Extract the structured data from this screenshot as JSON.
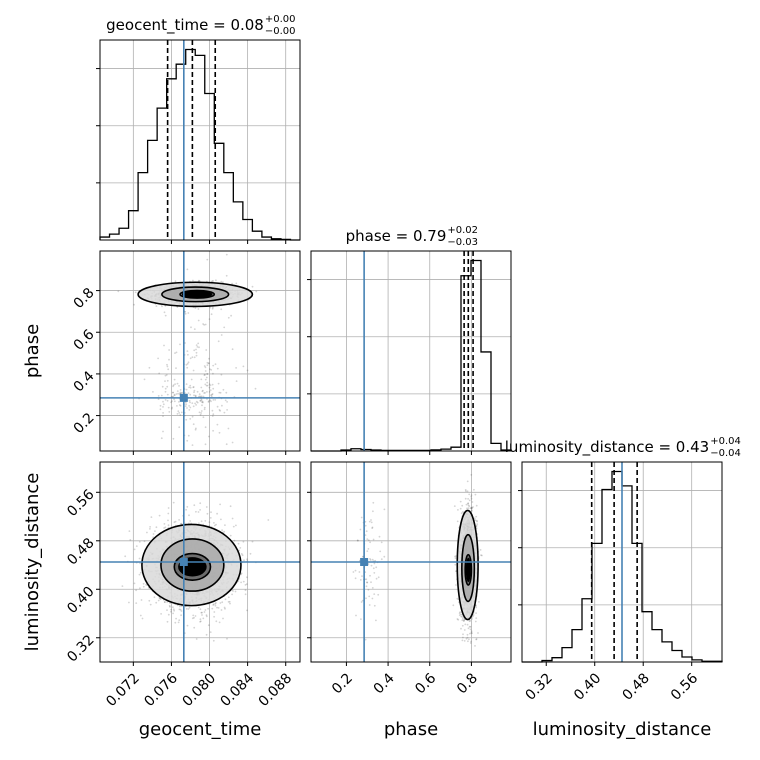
{
  "chart_data": {
    "type": "corner",
    "parameters": [
      "geocent_time",
      "phase",
      "luminosity_distance"
    ],
    "colors": {
      "truth": "#4682b4",
      "line": "#000000",
      "grid": "#b0b0b0",
      "scatter": "#555555"
    },
    "ranges": {
      "geocent_time": [
        0.0685,
        0.0895
      ],
      "phase": [
        0.03,
        0.99
      ],
      "luminosity_distance": [
        0.28,
        0.61
      ]
    },
    "truths": {
      "geocent_time": 0.0773,
      "phase": 0.285,
      "luminosity_distance": 0.445
    },
    "ticks": {
      "geocent_time": [
        0.072,
        0.076,
        0.08,
        0.084,
        0.088
      ],
      "phase": [
        0.2,
        0.4,
        0.6,
        0.8
      ],
      "luminosity_distance": [
        0.32,
        0.4,
        0.48,
        0.56
      ]
    },
    "tick_labels": {
      "geocent_time": [
        "0.072",
        "0.076",
        "0.080",
        "0.084",
        "0.088"
      ],
      "phase": [
        "0.2",
        "0.4",
        "0.6",
        "0.8"
      ],
      "luminosity_distance": [
        "0.32",
        "0.40",
        "0.48",
        "0.56"
      ]
    },
    "axis_labels": {
      "x_geocent_time": "geocent_time",
      "x_phase": "phase",
      "x_luminosity_distance": "luminosity_distance",
      "y_phase": "phase",
      "y_luminosity_distance": "luminosity_distance"
    },
    "titles": [
      {
        "param": "geocent_time",
        "main": "geocent_time = 0.08",
        "plus": "+0.00",
        "minus": "−0.00"
      },
      {
        "param": "phase",
        "main": "phase = 0.79",
        "plus": "+0.02",
        "minus": "−0.03"
      },
      {
        "param": "luminosity_distance",
        "main": "luminosity_distance = 0.43",
        "plus": "+0.04",
        "minus": "−0.04"
      }
    ],
    "quantiles": {
      "geocent_time": [
        0.0756,
        0.0782,
        0.0806
      ],
      "phase": [
        0.765,
        0.785,
        0.808
      ],
      "luminosity_distance": [
        0.395,
        0.432,
        0.47
      ]
    },
    "histograms": {
      "geocent_time": {
        "edges": [
          0.0685,
          0.0695,
          0.0705,
          0.0715,
          0.0725,
          0.0735,
          0.0745,
          0.0755,
          0.0765,
          0.0775,
          0.0785,
          0.0795,
          0.0805,
          0.0815,
          0.0825,
          0.0835,
          0.0845,
          0.0855,
          0.0865,
          0.0875,
          0.0885,
          0.0895
        ],
        "counts": [
          5,
          10,
          20,
          50,
          115,
          170,
          225,
          275,
          300,
          325,
          315,
          250,
          165,
          115,
          65,
          35,
          15,
          5,
          2,
          1,
          0
        ]
      },
      "phase": {
        "edges": [
          0.03,
          0.078,
          0.126,
          0.174,
          0.222,
          0.27,
          0.318,
          0.366,
          0.414,
          0.462,
          0.51,
          0.558,
          0.606,
          0.654,
          0.702,
          0.75,
          0.798,
          0.846,
          0.894,
          0.942,
          0.99
        ],
        "counts": [
          0,
          0,
          0,
          5,
          12,
          8,
          5,
          3,
          3,
          3,
          3,
          3,
          6,
          10,
          20,
          920,
          1000,
          520,
          40,
          5
        ]
      },
      "luminosity_distance": {
        "edges": [
          0.28,
          0.2965,
          0.313,
          0.3295,
          0.346,
          0.3625,
          0.379,
          0.3955,
          0.412,
          0.4285,
          0.445,
          0.4615,
          0.478,
          0.4945,
          0.511,
          0.5275,
          0.544,
          0.5605,
          0.577,
          0.5935,
          0.61
        ],
        "counts": [
          0,
          0,
          2,
          6,
          20,
          45,
          88,
          165,
          240,
          265,
          245,
          165,
          70,
          45,
          28,
          16,
          7,
          3,
          1,
          1
        ]
      }
    },
    "clouds": [
      {
        "x": "geocent_time",
        "y": "phase",
        "blobs": [
          {
            "cx": 0.0785,
            "cy": 0.785,
            "sx": 0.002,
            "sy": 0.025,
            "n": 1400
          },
          {
            "cx": 0.0785,
            "cy": 0.35,
            "sx": 0.0022,
            "sy": 0.25,
            "n": 200
          },
          {
            "cx": 0.078,
            "cy": 0.29,
            "sx": 0.0018,
            "sy": 0.035,
            "n": 120
          }
        ],
        "contours": [
          {
            "cx": 0.0785,
            "cy": 0.782,
            "rx": 0.006,
            "ry": 0.058
          },
          {
            "cx": 0.0785,
            "cy": 0.782,
            "rx": 0.0035,
            "ry": 0.035
          },
          {
            "cx": 0.0787,
            "cy": 0.782,
            "rx": 0.0018,
            "ry": 0.018
          }
        ],
        "cores": [
          {
            "cx": 0.0787,
            "cy": 0.782,
            "rx": 0.0016,
            "ry": 0.016
          }
        ]
      },
      {
        "x": "geocent_time",
        "y": "luminosity_distance",
        "blobs": [
          {
            "cx": 0.0782,
            "cy": 0.438,
            "sx": 0.0022,
            "sy": 0.035,
            "n": 1800
          }
        ],
        "contours": [
          {
            "cx": 0.0781,
            "cy": 0.44,
            "rx": 0.0052,
            "ry": 0.067
          },
          {
            "cx": 0.0782,
            "cy": 0.44,
            "rx": 0.0033,
            "ry": 0.043
          },
          {
            "cx": 0.0782,
            "cy": 0.437,
            "rx": 0.0019,
            "ry": 0.022
          }
        ],
        "cores": [
          {
            "cx": 0.0782,
            "cy": 0.437,
            "rx": 0.0015,
            "ry": 0.016
          }
        ]
      },
      {
        "x": "phase",
        "y": "luminosity_distance",
        "blobs": [
          {
            "cx": 0.785,
            "cy": 0.44,
            "sx": 0.02,
            "sy": 0.045,
            "n": 1600
          },
          {
            "cx": 0.3,
            "cy": 0.44,
            "sx": 0.03,
            "sy": 0.05,
            "n": 80
          }
        ],
        "contours": [
          {
            "cx": 0.782,
            "cy": 0.44,
            "rx": 0.05,
            "ry": 0.09
          },
          {
            "cx": 0.784,
            "cy": 0.435,
            "rx": 0.03,
            "ry": 0.055
          },
          {
            "cx": 0.785,
            "cy": 0.432,
            "rx": 0.015,
            "ry": 0.025
          }
        ],
        "cores": [
          {
            "cx": 0.785,
            "cy": 0.432,
            "rx": 0.012,
            "ry": 0.02
          }
        ]
      }
    ]
  }
}
